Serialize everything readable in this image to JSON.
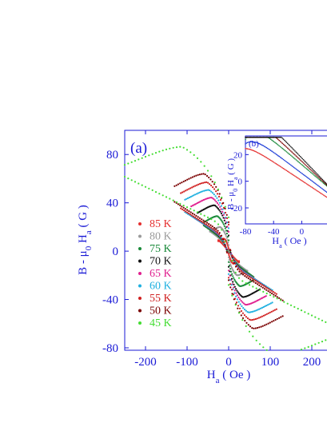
{
  "chart_data": [
    {
      "type": "scatter",
      "panel": "main",
      "panel_label": "(a)",
      "xlabel": "H_a ( Oe )",
      "ylabel": "B - μ_0 H_a ( G )",
      "xlim": [
        -250,
        250
      ],
      "ylim": [
        -82,
        100
      ],
      "xticks": [
        -200,
        -100,
        0,
        100,
        200
      ],
      "yticks": [
        -80,
        -40,
        0,
        40,
        80
      ],
      "legend_placement": "left",
      "series": [
        {
          "name": "85 K",
          "color": "#e53030",
          "hmax": 25,
          "bmax": 10,
          "rem": 2
        },
        {
          "name": "80 K",
          "color": "#9a9a9a",
          "hmax": 45,
          "bmax": 18,
          "rem": 5
        },
        {
          "name": "75 K",
          "color": "#1a8a3a",
          "hmax": 60,
          "bmax": 24,
          "rem": 9
        },
        {
          "name": "70 K",
          "color": "#111111",
          "hmax": 75,
          "bmax": 30,
          "rem": 13
        },
        {
          "name": "65 K",
          "color": "#e0208f",
          "hmax": 90,
          "bmax": 34,
          "rem": 16
        },
        {
          "name": "60 K",
          "color": "#1fb0e0",
          "hmax": 105,
          "bmax": 38,
          "rem": 19
        },
        {
          "name": "55 K",
          "color": "#d02020",
          "hmax": 115,
          "bmax": 42,
          "rem": 22
        },
        {
          "name": "50 K",
          "color": "#7a0000",
          "hmax": 130,
          "bmax": 48,
          "rem": 24
        },
        {
          "name": "45 K",
          "color": "#44dd33",
          "hmax": 250,
          "bmax": 70,
          "rem": 28
        }
      ]
    },
    {
      "type": "scatter",
      "panel": "inset",
      "panel_label": "(b)",
      "xlabel": "H_a ( Oe )",
      "ylabel": "B - μ_0 H_a ( G )",
      "xlim": [
        -80,
        45
      ],
      "ylim": [
        -32,
        34
      ],
      "xticks": [
        -80,
        -40,
        0
      ],
      "yticks": [
        -20,
        0,
        20
      ],
      "series": [
        {
          "color": "#e53030",
          "b0": 4
        },
        {
          "color": "#1a3ad6",
          "b0": 10
        },
        {
          "color": "#1a8a3a",
          "b0": 17
        },
        {
          "color": "#7a0000",
          "b0": 20
        },
        {
          "color": "#111111",
          "b0": 23
        }
      ]
    }
  ]
}
